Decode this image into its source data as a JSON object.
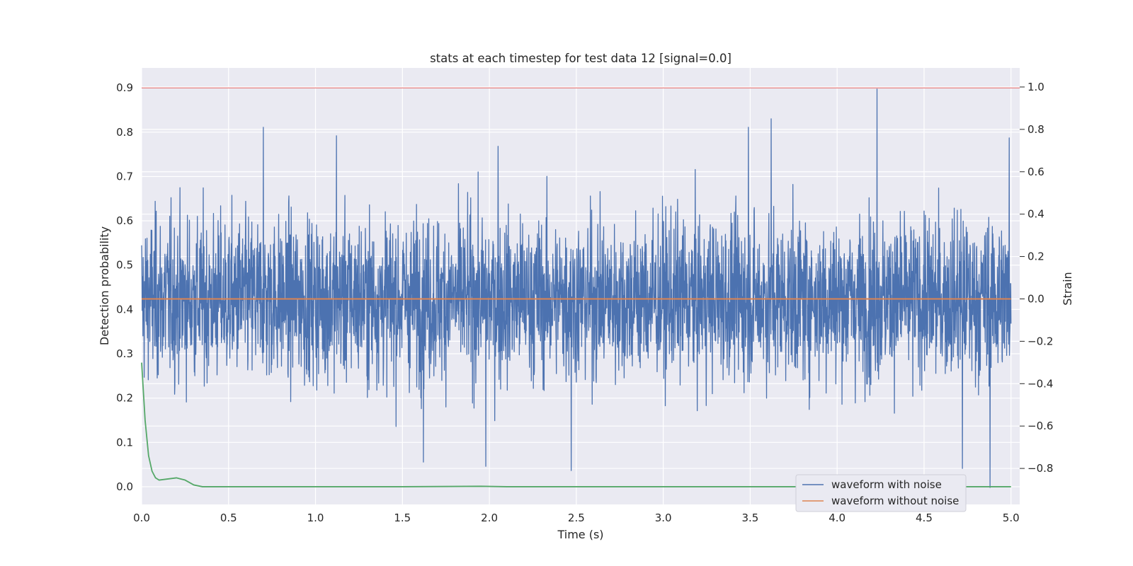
{
  "chart_data": {
    "type": "line",
    "title": "stats at each timestep for test data 12 [signal=0.0]",
    "xlabel": "Time (s)",
    "ylabel": "Detection probability",
    "ylabel_right": "Strain",
    "xlim": [
      0.0,
      5.05
    ],
    "ylim": [
      -0.04,
      0.945
    ],
    "ylim_right": [
      -0.97,
      1.09
    ],
    "x_ticks": [
      "0.0",
      "0.5",
      "1.0",
      "1.5",
      "2.0",
      "2.5",
      "3.0",
      "3.5",
      "4.0",
      "4.5",
      "5.0"
    ],
    "y_ticks": [
      "0.0",
      "0.1",
      "0.2",
      "0.3",
      "0.4",
      "0.5",
      "0.6",
      "0.7",
      "0.8",
      "0.9"
    ],
    "y_ticks_right": [
      "−0.8",
      "−0.6",
      "−0.4",
      "−0.2",
      "0.0",
      "0.2",
      "0.4",
      "0.6",
      "0.8",
      "1.0"
    ],
    "grid": true,
    "legend_position": "lower-right",
    "threshold": {
      "value": 0.9,
      "color": "#e06060"
    },
    "series": [
      {
        "name": "waveform with noise",
        "axis": "right",
        "color": "#4c72b0",
        "x_range": [
          0.0,
          5.0
        ],
        "typical_std": 0.19,
        "min": -0.89,
        "max": 0.99,
        "spikes": [
          [
            0.7,
            0.81
          ],
          [
            1.12,
            0.77
          ],
          [
            2.05,
            0.72
          ],
          [
            2.47,
            -0.81
          ],
          [
            3.62,
            0.85
          ],
          [
            3.49,
            0.81
          ],
          [
            4.23,
            0.99
          ],
          [
            4.72,
            -0.8
          ],
          [
            4.88,
            -0.89
          ],
          [
            4.99,
            0.76
          ],
          [
            1.98,
            -0.79
          ],
          [
            1.62,
            -0.77
          ]
        ]
      },
      {
        "name": "waveform without noise",
        "axis": "right",
        "color": "#dd8452",
        "x": [
          0.0,
          5.0
        ],
        "values": [
          0.0,
          0.0
        ]
      },
      {
        "axis": "left",
        "color": "#55a868",
        "x": [
          0.0,
          0.02,
          0.04,
          0.06,
          0.08,
          0.1,
          0.14,
          0.2,
          0.25,
          0.3,
          0.35,
          1.5,
          1.95,
          2.1,
          5.0
        ],
        "values": [
          0.28,
          0.15,
          0.07,
          0.035,
          0.02,
          0.015,
          0.017,
          0.02,
          0.015,
          0.004,
          0.0,
          0.0,
          0.001,
          0.0,
          0.0
        ]
      }
    ]
  }
}
